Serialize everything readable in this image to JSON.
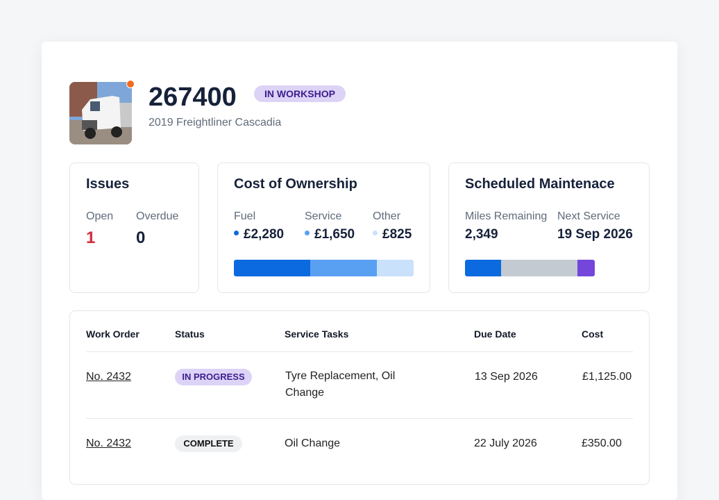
{
  "header": {
    "title": "267400",
    "status": "IN WORKSHOP",
    "subtitle": "2019 Freightliner Cascadia"
  },
  "issues": {
    "title": "Issues",
    "stats": [
      {
        "label": "Open",
        "value": "1"
      },
      {
        "label": "Overdue",
        "value": "0"
      }
    ]
  },
  "cost": {
    "title": "Cost of Ownership",
    "items": [
      {
        "label": "Fuel",
        "value": "£2,280"
      },
      {
        "label": "Service",
        "value": "£1,650"
      },
      {
        "label": "Other",
        "value": "£825"
      }
    ]
  },
  "maintenance": {
    "title": "Scheduled Maintenace",
    "items": [
      {
        "label": "Miles Remaining",
        "value": "2,349"
      },
      {
        "label": "Next Service",
        "value": "19 Sep 2026"
      }
    ]
  },
  "table": {
    "columns": [
      "Work Order",
      "Status",
      "Service Tasks",
      "Due Date",
      "Cost"
    ],
    "rows": [
      [
        "No. 2432",
        "IN PROGRESS",
        "Tyre Replacement, Oil Change",
        "13 Sep 2026",
        "£1,125.00"
      ],
      [
        "No. 2432",
        "COMPLETE",
        "Oil Change",
        "22 July 2026",
        "£350.00"
      ]
    ]
  }
}
